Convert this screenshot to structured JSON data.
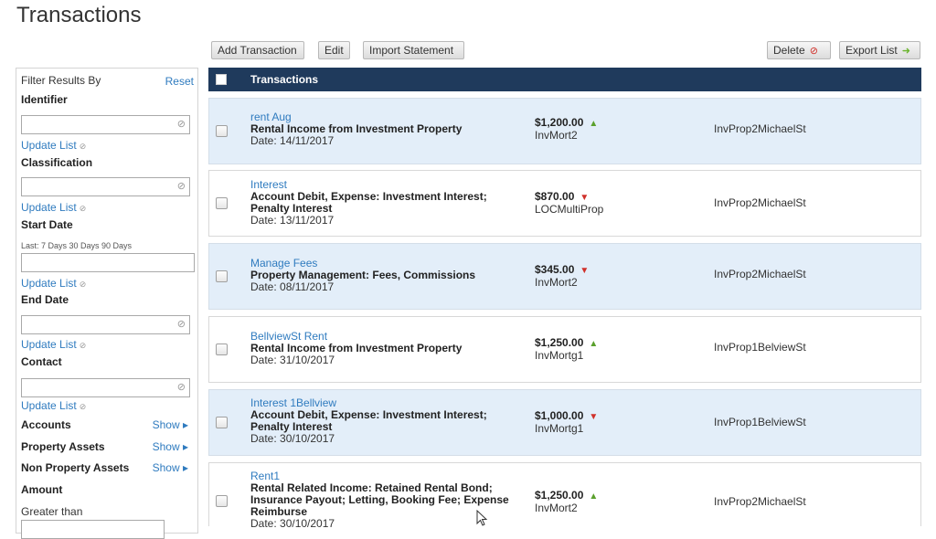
{
  "page": {
    "title": "Transactions"
  },
  "toolbar": {
    "add": "Add Transaction",
    "edit": "Edit",
    "import": "Import Statement",
    "delete": "Delete",
    "export": "Export List"
  },
  "sidebar": {
    "heading": "Filter Results By",
    "reset": "Reset",
    "update": "Update List",
    "identifier": "Identifier",
    "classification": "Classification",
    "start_date": "Start Date",
    "last_presets": "Last: 7 Days 30 Days 90 Days",
    "end_date": "End Date",
    "contact": "Contact",
    "accounts": "Accounts",
    "property_assets": "Property Assets",
    "non_property_assets": "Non Property Assets",
    "show": "Show",
    "amount": "Amount",
    "greater_than": "Greater than"
  },
  "table": {
    "header": "Transactions",
    "rows": [
      {
        "name": "rent Aug",
        "classification": "Rental Income from Investment Property",
        "date": "Date: 14/11/2017",
        "amount": "$1,200.00",
        "direction": "up",
        "account": "InvMort2",
        "property": "InvProp2MichaelSt"
      },
      {
        "name": "Interest",
        "classification": "Account Debit, Expense: Investment Interest; Penalty Interest",
        "date": "Date: 13/11/2017",
        "amount": "$870.00",
        "direction": "down",
        "account": "LOCMultiProp",
        "property": "InvProp2MichaelSt"
      },
      {
        "name": "Manage Fees",
        "classification": "Property Management: Fees, Commissions",
        "date": "Date: 08/11/2017",
        "amount": "$345.00",
        "direction": "down",
        "account": "InvMort2",
        "property": "InvProp2MichaelSt"
      },
      {
        "name": "BellviewSt Rent",
        "classification": "Rental Income from Investment Property",
        "date": "Date: 31/10/2017",
        "amount": "$1,250.00",
        "direction": "up",
        "account": "InvMortg1",
        "property": "InvProp1BelviewSt"
      },
      {
        "name": "Interest 1Bellview",
        "classification": "Account Debit, Expense: Investment Interest; Penalty Interest",
        "date": "Date: 30/10/2017",
        "amount": "$1,000.00",
        "direction": "down",
        "account": "InvMortg1",
        "property": "InvProp1BelviewSt"
      },
      {
        "name": "Rent1",
        "classification": "Rental Related Income: Retained Rental Bond; Insurance Payout; Letting, Booking Fee; Expense Reimburse",
        "date": "Date: 30/10/2017",
        "amount": "$1,250.00",
        "direction": "up",
        "account": "InvMort2",
        "property": "InvProp2MichaelSt"
      }
    ]
  },
  "icons": {
    "up": "▲",
    "down": "▼",
    "delete": "⊘",
    "export": "➜",
    "clear": "⊘",
    "refresh": "⊘",
    "show": "▸"
  }
}
